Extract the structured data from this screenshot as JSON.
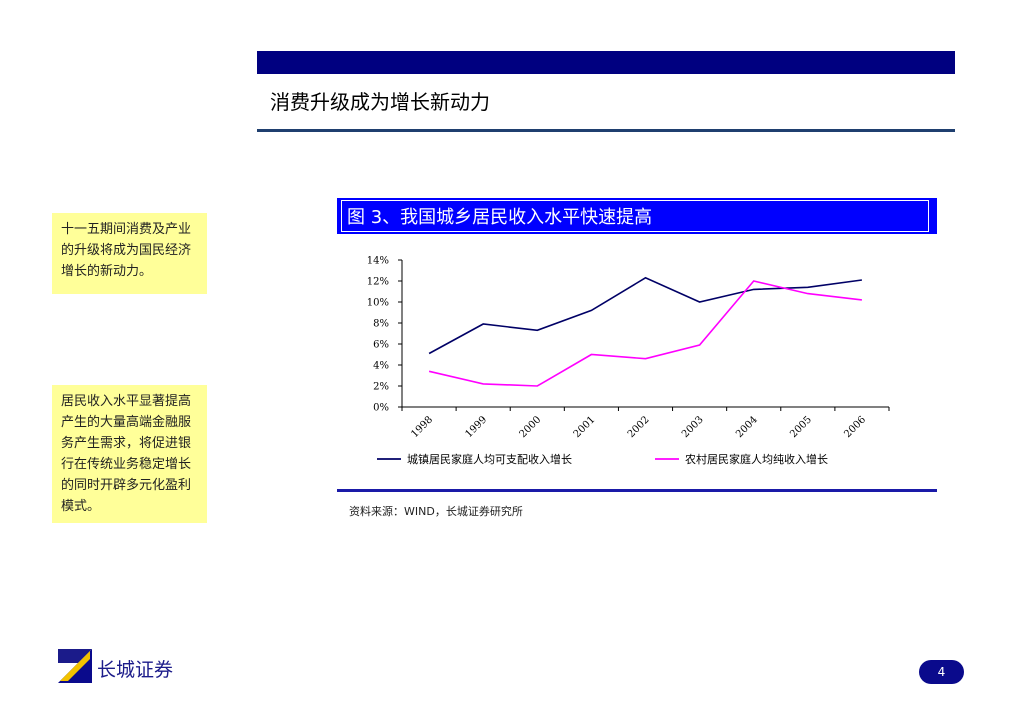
{
  "slide": {
    "title": "消费升级成为增长新动力",
    "note1": "十一五期间消费及产业的升级将成为国民经济增长的新动力。",
    "note2": "居民收入水平显著提高产生的大量高端金融服务产生需求，将促进银行在传统业务稳定增长的同时开辟多元化盈利模式。",
    "source": "资料来源：WIND，长城证券研究所",
    "brand": "长城证券",
    "page_number": "4"
  },
  "colors": {
    "band": "#000080",
    "figure_band": "#0000ff",
    "note_bg": "#ffff99",
    "urban": "#000066",
    "rural": "#ff00ff"
  },
  "icons": {
    "logo": "great-wall-logo-icon"
  },
  "chart_data": {
    "type": "line",
    "title": "图 3、我国城乡居民收入水平快速提高",
    "categories": [
      "1998",
      "1999",
      "2000",
      "2001",
      "2002",
      "2003",
      "2004",
      "2005",
      "2006"
    ],
    "yticks": [
      "0%",
      "2%",
      "4%",
      "6%",
      "8%",
      "10%",
      "12%",
      "14%"
    ],
    "ylim": [
      0,
      14
    ],
    "series": [
      {
        "name": "城镇居民家庭人均可支配收入增长",
        "color": "#000066",
        "values": [
          5.1,
          7.9,
          7.3,
          9.2,
          12.3,
          10.0,
          11.2,
          11.4,
          12.1
        ]
      },
      {
        "name": "农村居民家庭人均纯收入增长",
        "color": "#ff00ff",
        "values": [
          3.4,
          2.2,
          2.0,
          5.0,
          4.6,
          5.9,
          12.0,
          10.8,
          10.2
        ]
      }
    ],
    "legend_position": "bottom",
    "grid": false
  }
}
